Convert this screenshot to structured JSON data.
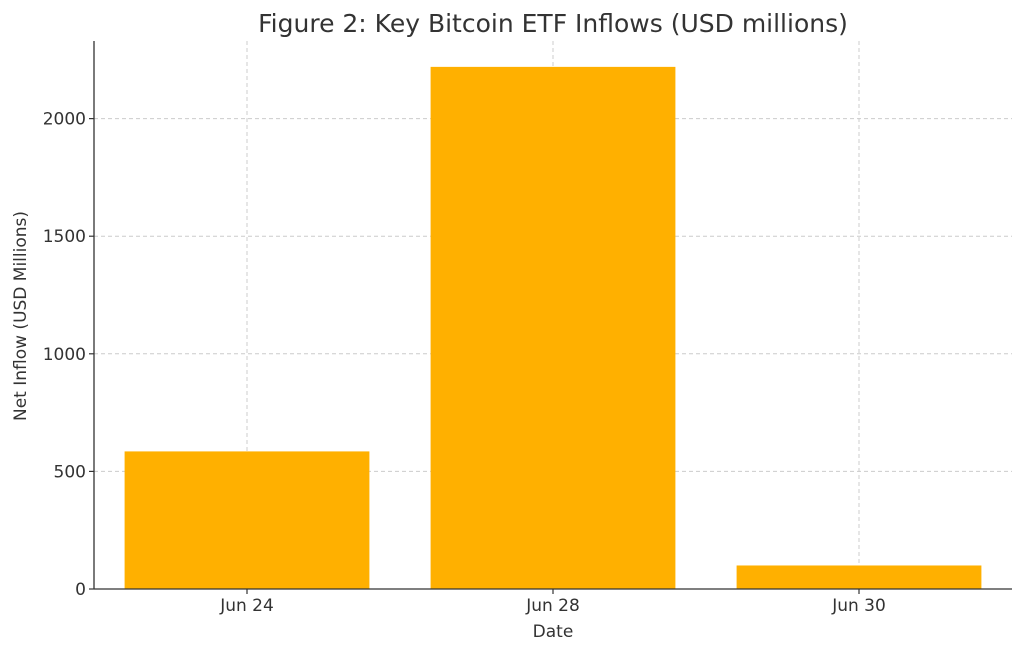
{
  "chart_data": {
    "type": "bar",
    "title": "Figure 2: Key Bitcoin ETF Inflows (USD millions)",
    "xlabel": "Date",
    "ylabel": "Net Inflow (USD Millions)",
    "categories": [
      "Jun 24",
      "Jun 28",
      "Jun 30"
    ],
    "values": [
      585,
      2220,
      100
    ],
    "ylim": [
      0,
      2330
    ],
    "yticks": [
      0,
      500,
      1000,
      1500,
      2000
    ],
    "grid": true,
    "bar_color": "#FFB000"
  }
}
